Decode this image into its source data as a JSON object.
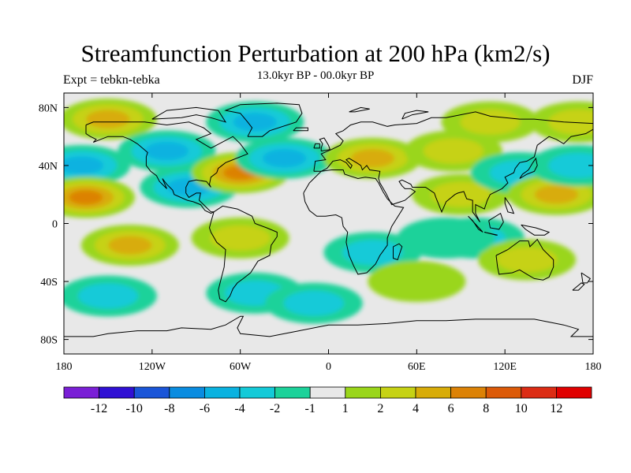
{
  "header": {
    "title": "Streamfunction Perturbation at 200 hPa (km2/s)",
    "subtitle": "13.0kyr BP - 00.0kyr BP",
    "left_label": "Expt = tebkn-tebka",
    "right_label": "DJF"
  },
  "chart_data": {
    "type": "heatmap",
    "projection": "cylindrical-equidistant",
    "variable": "streamfunction perturbation",
    "level": "200 hPa",
    "units": "km2/s",
    "xlim": [
      -180,
      180
    ],
    "ylim": [
      -90,
      90
    ],
    "x_ticks": [
      -180,
      -120,
      -60,
      0,
      60,
      120,
      180
    ],
    "x_tick_labels": [
      "180",
      "120W",
      "60W",
      "0",
      "60E",
      "120E",
      "180"
    ],
    "y_ticks": [
      80,
      40,
      0,
      -40,
      -80
    ],
    "y_tick_labels": [
      "80N",
      "40N",
      "0",
      "40S",
      "80S"
    ],
    "colorbar": {
      "labels": [
        "-12",
        "-10",
        "-8",
        "-6",
        "-4",
        "-2",
        "-1",
        "1",
        "2",
        "4",
        "6",
        "8",
        "10",
        "12"
      ],
      "colors": [
        "#7a1fd6",
        "#3010d4",
        "#1a55d8",
        "#0a8ce0",
        "#0ab2e0",
        "#14cad8",
        "#1cd29a",
        "#e8e8e8",
        "#9ad61a",
        "#c6d214",
        "#d8ac08",
        "#dc8206",
        "#dc5a08",
        "#dc2c14",
        "#e00000"
      ]
    },
    "anomaly_centers": [
      {
        "lon": -168,
        "lat": 40,
        "value": -4
      },
      {
        "lon": -165,
        "lat": 18,
        "value": 7
      },
      {
        "lon": -135,
        "lat": -15,
        "value": 4
      },
      {
        "lon": -150,
        "lat": -50,
        "value": -2
      },
      {
        "lon": -150,
        "lat": 72,
        "value": 4
      },
      {
        "lon": -110,
        "lat": 50,
        "value": -4
      },
      {
        "lon": -95,
        "lat": 25,
        "value": -5
      },
      {
        "lon": -60,
        "lat": 35,
        "value": 6
      },
      {
        "lon": -60,
        "lat": -10,
        "value": 2
      },
      {
        "lon": -50,
        "lat": 70,
        "value": -4
      },
      {
        "lon": -30,
        "lat": 45,
        "value": -4
      },
      {
        "lon": -50,
        "lat": -48,
        "value": -2
      },
      {
        "lon": -10,
        "lat": -55,
        "value": -2
      },
      {
        "lon": 30,
        "lat": 45,
        "value": 4
      },
      {
        "lon": 30,
        "lat": -20,
        "value": -2
      },
      {
        "lon": 90,
        "lat": 20,
        "value": 2
      },
      {
        "lon": 85,
        "lat": 50,
        "value": 2
      },
      {
        "lon": 110,
        "lat": 70,
        "value": 2
      },
      {
        "lon": 130,
        "lat": 35,
        "value": -3
      },
      {
        "lon": 170,
        "lat": 70,
        "value": 2
      },
      {
        "lon": 155,
        "lat": 20,
        "value": 4
      },
      {
        "lon": 100,
        "lat": -10,
        "value": -2
      },
      {
        "lon": 135,
        "lat": -25,
        "value": 2
      },
      {
        "lon": 170,
        "lat": 40,
        "value": -3
      },
      {
        "lon": 60,
        "lat": -40,
        "value": 1
      },
      {
        "lon": 80,
        "lat": -10,
        "value": -1
      }
    ]
  }
}
